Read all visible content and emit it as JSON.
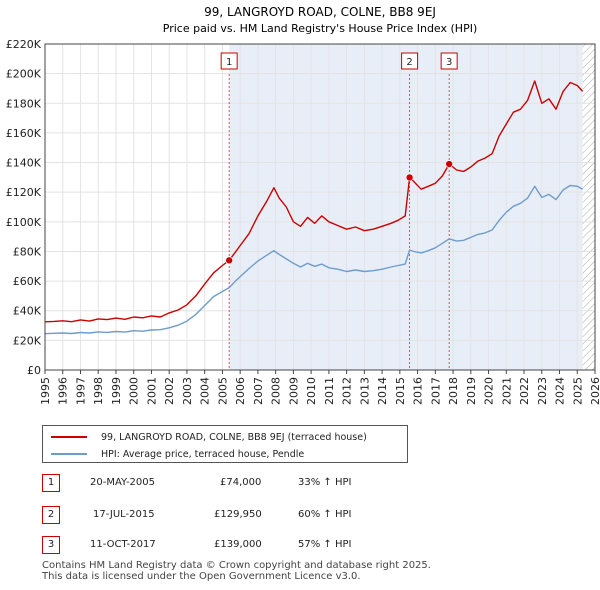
{
  "colors": {
    "property": "#cc0000",
    "hpi": "#6f9ccb",
    "shade": "#e8eef8",
    "grid": "#e3e3e3",
    "marker": "#cc0000"
  },
  "chart_data": {
    "type": "line",
    "title": "99, LANGROYD ROAD, COLNE, BB8 9EJ",
    "subtitle": "Price paid vs. HM Land Registry's House Price Index (HPI)",
    "xlim": [
      1995,
      2026
    ],
    "ylim": [
      0,
      220000
    ],
    "y_ticks": [
      {
        "value": 0,
        "label": "£0"
      },
      {
        "value": 20000,
        "label": "£20K"
      },
      {
        "value": 40000,
        "label": "£40K"
      },
      {
        "value": 60000,
        "label": "£60K"
      },
      {
        "value": 80000,
        "label": "£80K"
      },
      {
        "value": 100000,
        "label": "£100K"
      },
      {
        "value": 120000,
        "label": "£120K"
      },
      {
        "value": 140000,
        "label": "£140K"
      },
      {
        "value": 160000,
        "label": "£160K"
      },
      {
        "value": 180000,
        "label": "£180K"
      },
      {
        "value": 200000,
        "label": "£200K"
      },
      {
        "value": 220000,
        "label": "£220K"
      }
    ],
    "x_ticks": [
      "1995",
      "1996",
      "1997",
      "1998",
      "1999",
      "2000",
      "2001",
      "2002",
      "2003",
      "2004",
      "2005",
      "2006",
      "2007",
      "2008",
      "2009",
      "2010",
      "2011",
      "2012",
      "2013",
      "2014",
      "2015",
      "2016",
      "2017",
      "2018",
      "2019",
      "2020",
      "2021",
      "2022",
      "2023",
      "2024",
      "2025",
      "2026"
    ],
    "shaded_range": [
      2005.38,
      2025.3
    ],
    "hatched_from": 2025.3,
    "series": [
      {
        "name": "99, LANGROYD ROAD, COLNE, BB8 9EJ (terraced house)",
        "color": "#cc0000",
        "points": [
          [
            1995.0,
            32500
          ],
          [
            1995.5,
            32800
          ],
          [
            1996.0,
            33200
          ],
          [
            1996.5,
            32600
          ],
          [
            1997.0,
            33800
          ],
          [
            1997.5,
            33000
          ],
          [
            1998.0,
            34500
          ],
          [
            1998.5,
            34000
          ],
          [
            1999.0,
            35000
          ],
          [
            1999.5,
            34200
          ],
          [
            2000.0,
            35800
          ],
          [
            2000.5,
            35200
          ],
          [
            2001.0,
            36500
          ],
          [
            2001.5,
            35800
          ],
          [
            2002.0,
            38500
          ],
          [
            2002.5,
            40500
          ],
          [
            2003.0,
            44000
          ],
          [
            2003.5,
            50000
          ],
          [
            2004.0,
            58000
          ],
          [
            2004.5,
            65500
          ],
          [
            2005.0,
            70500
          ],
          [
            2005.38,
            74000
          ],
          [
            2005.7,
            79000
          ],
          [
            2006.0,
            84000
          ],
          [
            2006.5,
            92000
          ],
          [
            2007.0,
            104000
          ],
          [
            2007.5,
            114000
          ],
          [
            2007.9,
            123000
          ],
          [
            2008.2,
            116000
          ],
          [
            2008.6,
            110000
          ],
          [
            2009.0,
            100000
          ],
          [
            2009.4,
            97000
          ],
          [
            2009.8,
            103000
          ],
          [
            2010.2,
            99000
          ],
          [
            2010.6,
            104000
          ],
          [
            2011.0,
            100000
          ],
          [
            2011.5,
            97500
          ],
          [
            2012.0,
            95000
          ],
          [
            2012.5,
            96500
          ],
          [
            2013.0,
            94000
          ],
          [
            2013.5,
            95000
          ],
          [
            2014.0,
            97000
          ],
          [
            2014.5,
            99000
          ],
          [
            2014.9,
            101000
          ],
          [
            2015.3,
            104000
          ],
          [
            2015.55,
            129950
          ],
          [
            2015.8,
            127000
          ],
          [
            2016.2,
            122000
          ],
          [
            2016.6,
            124000
          ],
          [
            2017.0,
            126000
          ],
          [
            2017.4,
            131000
          ],
          [
            2017.78,
            139000
          ],
          [
            2018.2,
            135000
          ],
          [
            2018.6,
            134000
          ],
          [
            2019.0,
            137000
          ],
          [
            2019.4,
            141000
          ],
          [
            2019.8,
            143000
          ],
          [
            2020.2,
            146000
          ],
          [
            2020.6,
            158000
          ],
          [
            2021.0,
            166000
          ],
          [
            2021.4,
            174000
          ],
          [
            2021.8,
            176000
          ],
          [
            2022.2,
            182000
          ],
          [
            2022.6,
            195000
          ],
          [
            2023.0,
            180000
          ],
          [
            2023.4,
            183000
          ],
          [
            2023.8,
            176000
          ],
          [
            2024.2,
            188000
          ],
          [
            2024.6,
            194000
          ],
          [
            2025.0,
            192000
          ],
          [
            2025.3,
            188000
          ]
        ]
      },
      {
        "name": "HPI: Average price, terraced house, Pendle",
        "color": "#6f9ccb",
        "points": [
          [
            1995.0,
            24500
          ],
          [
            1995.5,
            24800
          ],
          [
            1996.0,
            25000
          ],
          [
            1996.5,
            24600
          ],
          [
            1997.0,
            25300
          ],
          [
            1997.5,
            25000
          ],
          [
            1998.0,
            25700
          ],
          [
            1998.5,
            25400
          ],
          [
            1999.0,
            26000
          ],
          [
            1999.5,
            25600
          ],
          [
            2000.0,
            26500
          ],
          [
            2000.5,
            26200
          ],
          [
            2001.0,
            27000
          ],
          [
            2001.5,
            27200
          ],
          [
            2002.0,
            28500
          ],
          [
            2002.5,
            30200
          ],
          [
            2003.0,
            33000
          ],
          [
            2003.5,
            37500
          ],
          [
            2004.0,
            43500
          ],
          [
            2004.5,
            49500
          ],
          [
            2005.0,
            53000
          ],
          [
            2005.38,
            55600
          ],
          [
            2005.7,
            59500
          ],
          [
            2006.0,
            63000
          ],
          [
            2006.5,
            68500
          ],
          [
            2007.0,
            73500
          ],
          [
            2007.5,
            77500
          ],
          [
            2007.9,
            80500
          ],
          [
            2008.2,
            78000
          ],
          [
            2008.6,
            75000
          ],
          [
            2009.0,
            72000
          ],
          [
            2009.4,
            69500
          ],
          [
            2009.8,
            72000
          ],
          [
            2010.2,
            70000
          ],
          [
            2010.6,
            71500
          ],
          [
            2011.0,
            69000
          ],
          [
            2011.5,
            68000
          ],
          [
            2012.0,
            66500
          ],
          [
            2012.5,
            67500
          ],
          [
            2013.0,
            66500
          ],
          [
            2013.5,
            67000
          ],
          [
            2014.0,
            68000
          ],
          [
            2014.5,
            69500
          ],
          [
            2014.9,
            70500
          ],
          [
            2015.3,
            71500
          ],
          [
            2015.55,
            81000
          ],
          [
            2015.8,
            80000
          ],
          [
            2016.2,
            79000
          ],
          [
            2016.6,
            80500
          ],
          [
            2017.0,
            82500
          ],
          [
            2017.4,
            85500
          ],
          [
            2017.78,
            88500
          ],
          [
            2018.2,
            87000
          ],
          [
            2018.6,
            87500
          ],
          [
            2019.0,
            89500
          ],
          [
            2019.4,
            91500
          ],
          [
            2019.8,
            92500
          ],
          [
            2020.2,
            94500
          ],
          [
            2020.6,
            101000
          ],
          [
            2021.0,
            106500
          ],
          [
            2021.4,
            110500
          ],
          [
            2021.8,
            112500
          ],
          [
            2022.2,
            116000
          ],
          [
            2022.6,
            124000
          ],
          [
            2023.0,
            116500
          ],
          [
            2023.4,
            118500
          ],
          [
            2023.8,
            115000
          ],
          [
            2024.2,
            121500
          ],
          [
            2024.6,
            124500
          ],
          [
            2025.0,
            124000
          ],
          [
            2025.3,
            122000
          ]
        ]
      }
    ],
    "annotations": [
      {
        "label": "1",
        "x": 2005.38,
        "y": 74000
      },
      {
        "label": "2",
        "x": 2015.55,
        "y": 129950
      },
      {
        "label": "3",
        "x": 2017.78,
        "y": 139000
      }
    ]
  },
  "legend": {
    "property_label": "99, LANGROYD ROAD, COLNE, BB8 9EJ (terraced house)",
    "hpi_label": "HPI: Average price, terraced house, Pendle"
  },
  "transactions": [
    {
      "num": "1",
      "date": "20-MAY-2005",
      "price": "£74,000",
      "hpi": "33% ↑ HPI"
    },
    {
      "num": "2",
      "date": "17-JUL-2015",
      "price": "£129,950",
      "hpi": "60% ↑ HPI"
    },
    {
      "num": "3",
      "date": "11-OCT-2017",
      "price": "£139,000",
      "hpi": "57% ↑ HPI"
    }
  ],
  "footer": {
    "line1": "Contains HM Land Registry data © Crown copyright and database right 2025.",
    "line2": "This data is licensed under the Open Government Licence v3.0."
  }
}
